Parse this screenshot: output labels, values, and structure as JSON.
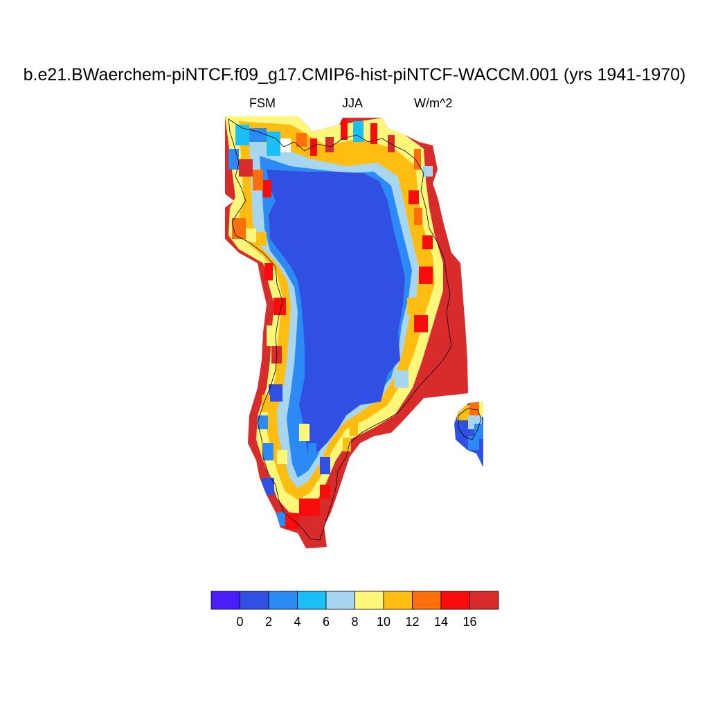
{
  "title": "b.e21.BWaerchem-piNTCF.f09_g17.CMIP6-hist-piNTCF-WACCM.001 (yrs 1941-1970)",
  "subtitle_left": "FSM",
  "subtitle_center": "JJA",
  "subtitle_right": "W/m^2",
  "colorbar": {
    "colors": [
      "#4a1ef7",
      "#2f50e2",
      "#2c8af5",
      "#19bff5",
      "#a6d6f0",
      "#fff77a",
      "#ffbd12",
      "#ff6f0a",
      "#f90c0c",
      "#d82c2c"
    ],
    "labels": [
      "0",
      "2",
      "4",
      "6",
      "8",
      "10",
      "12",
      "14",
      "16"
    ]
  },
  "map": {
    "region": "Greenland",
    "interior_color": "#2f50e2",
    "coast_high_color": "#d82c2c"
  }
}
